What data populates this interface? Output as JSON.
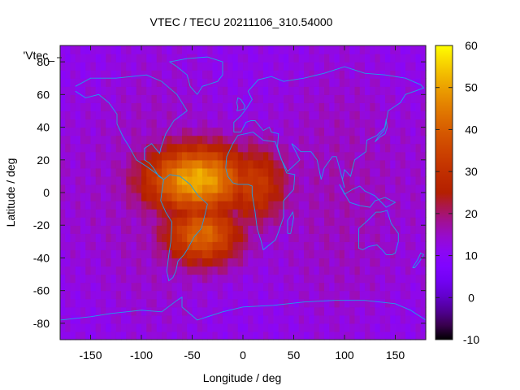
{
  "chart_data": {
    "type": "heatmap",
    "title": "VTEC / TECU 20211106_310.54000",
    "xlabel": "Longitude / deg",
    "ylabel": "Latitude / deg",
    "legend_key": "'Vtec_",
    "xlim": [
      -180,
      180
    ],
    "ylim": [
      -90,
      90
    ],
    "xticks": [
      -150,
      -100,
      -50,
      0,
      50,
      100,
      150
    ],
    "yticks": [
      -80,
      -60,
      -40,
      -20,
      0,
      20,
      40,
      60,
      80
    ],
    "colorbar": {
      "range": [
        -10,
        60
      ],
      "ticks": [
        -10,
        0,
        10,
        20,
        30,
        40,
        50,
        60
      ],
      "palette": "gnuplot black-blue-violet-red-orange-yellow"
    },
    "field_description_units": "TECU",
    "background_value": 12,
    "enhancement_regions": [
      {
        "name": "equatorial-anomaly-core",
        "lon_center": -45,
        "lat_center": 8,
        "lon_halfwidth": 55,
        "lat_halfwidth": 22,
        "peak": 52
      },
      {
        "name": "south-atlantic-lobe",
        "lon_center": -40,
        "lat_center": -25,
        "lon_halfwidth": 40,
        "lat_halfwidth": 20,
        "peak": 42
      },
      {
        "name": "africa-lobe",
        "lon_center": 10,
        "lat_center": 5,
        "lon_halfwidth": 35,
        "lat_halfwidth": 25,
        "peak": 33
      }
    ],
    "coastline_color": "#1ea0e8"
  }
}
